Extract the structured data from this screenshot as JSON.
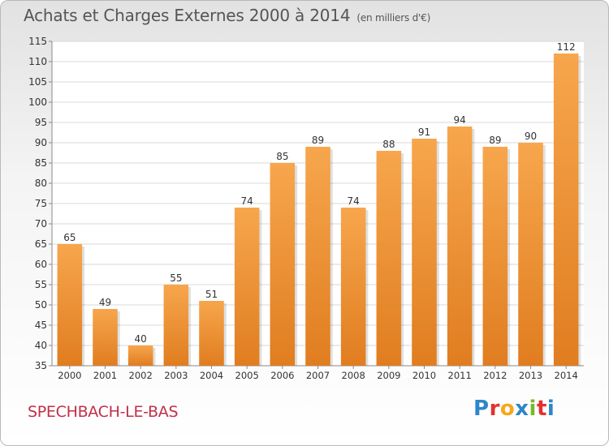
{
  "title": "Achats et Charges Externes 2000 à 2014",
  "unit_note": "(en milliers d'€)",
  "commune": "SPECHBACH-LE-BAS",
  "logo": {
    "letters": [
      "P",
      "r",
      "o",
      "x",
      "i",
      "t",
      "i"
    ],
    "colors": [
      "#2e86c8",
      "#e4302f",
      "#f6a81b",
      "#2e86c8",
      "#79b82a",
      "#e4302f",
      "#2e86c8"
    ]
  },
  "colors": {
    "bar_light": "#f7a64d",
    "bar_dark": "#e07d20",
    "grid": "#d8d8d8",
    "axis": "#8a8a8a",
    "text": "#333333"
  },
  "chart_data": {
    "type": "bar",
    "categories": [
      "2000",
      "2001",
      "2002",
      "2003",
      "2004",
      "2005",
      "2006",
      "2007",
      "2008",
      "2009",
      "2010",
      "2011",
      "2012",
      "2013",
      "2014"
    ],
    "values": [
      65,
      49,
      40,
      55,
      51,
      74,
      85,
      89,
      74,
      88,
      91,
      94,
      89,
      90,
      112
    ],
    "ylim": [
      35,
      115
    ],
    "yticks": [
      35,
      40,
      45,
      50,
      55,
      60,
      65,
      70,
      75,
      80,
      85,
      90,
      95,
      100,
      105,
      110,
      115
    ],
    "grid": true,
    "data_labels": true
  }
}
